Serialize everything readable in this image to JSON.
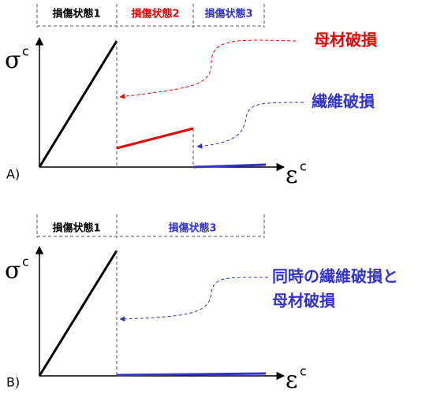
{
  "panels": [
    {
      "label": "A)",
      "y_axis": "σ",
      "y_axis_sup": "c",
      "x_axis": "ε",
      "x_axis_sup": "c",
      "states": [
        "損傷状態1",
        "損傷状態2",
        "損傷状態3"
      ],
      "annotations": [
        "母材破損",
        "繊維破損"
      ]
    },
    {
      "label": "B)",
      "y_axis": "σ",
      "y_axis_sup": "c",
      "x_axis": "ε",
      "x_axis_sup": "c",
      "states": [
        "損傷状態1",
        "損傷状態3"
      ],
      "annotations": [
        "同時の繊維破損と",
        "母材破損"
      ]
    }
  ]
}
